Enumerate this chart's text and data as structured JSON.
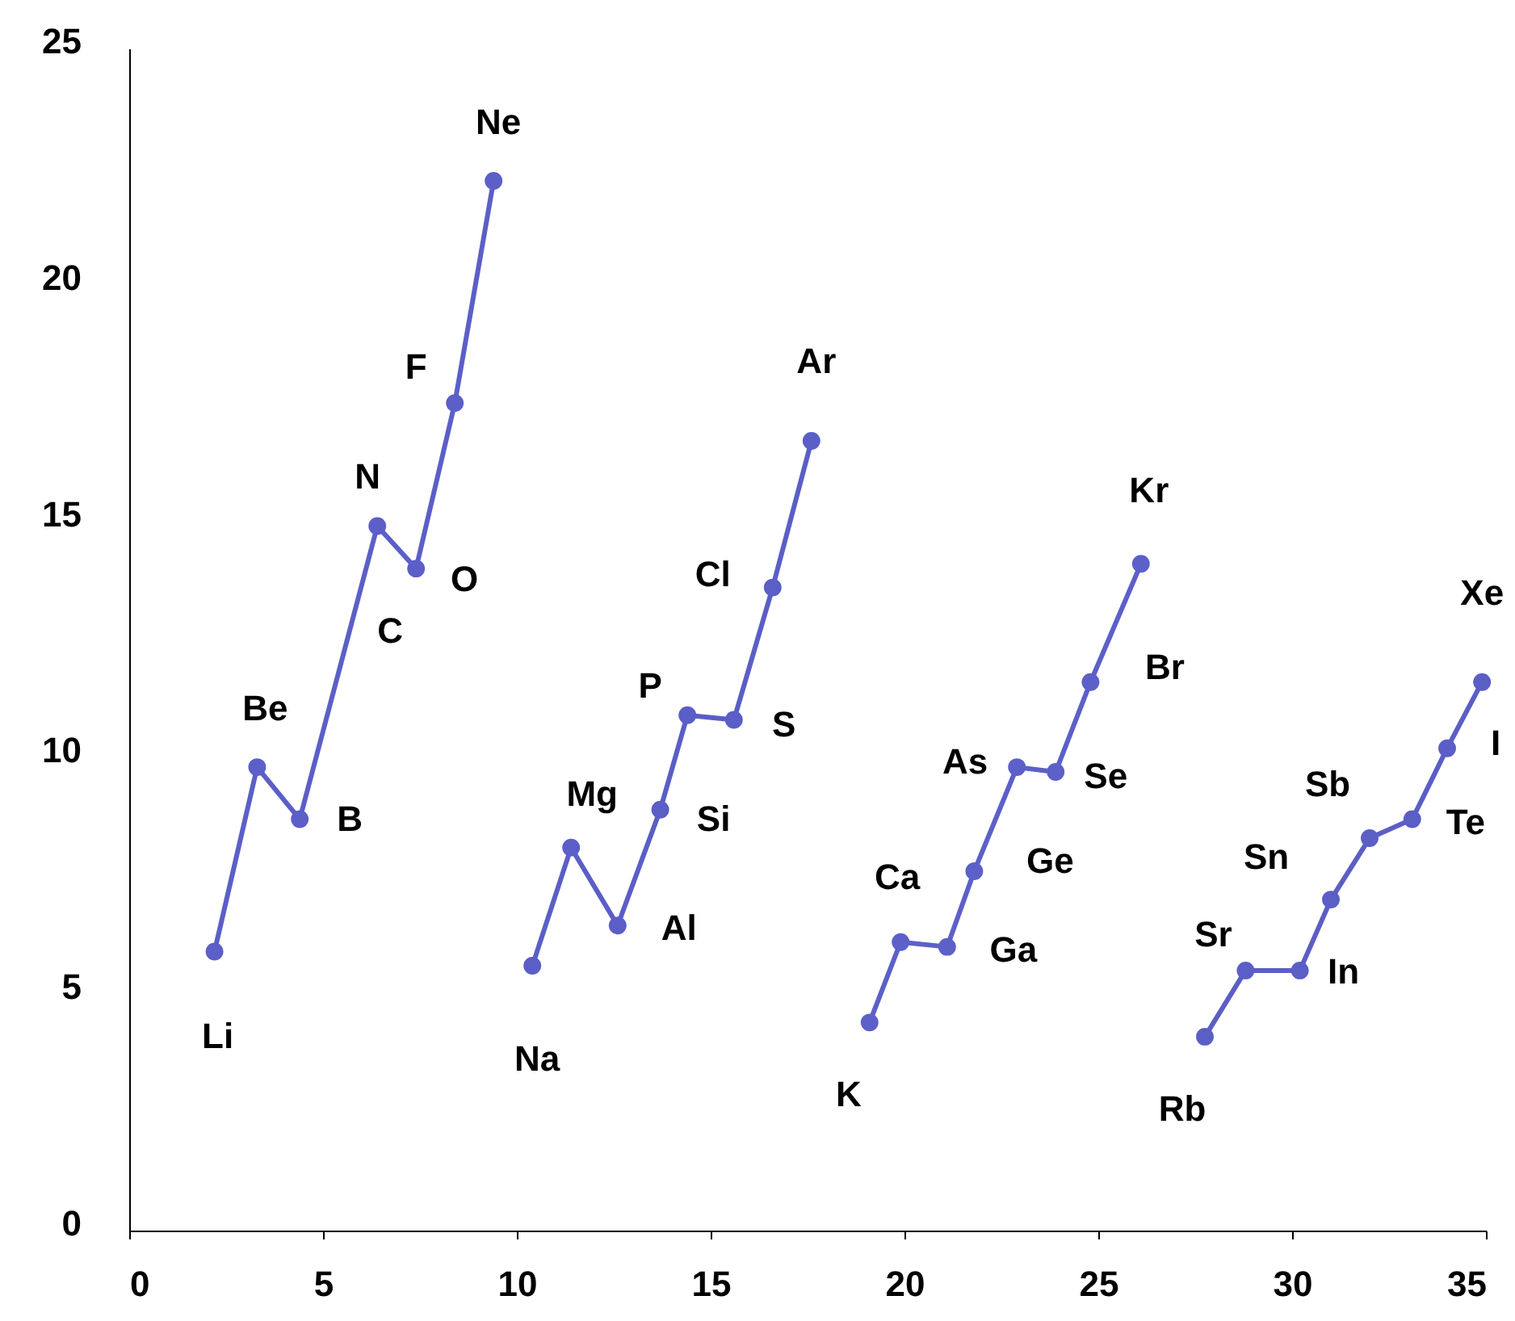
{
  "chart_data": {
    "type": "line",
    "marker": "circle",
    "line_style": "solid",
    "grid": false,
    "xlim": [
      0,
      35
    ],
    "xticks": [
      0,
      5,
      10,
      15,
      20,
      25,
      30,
      35
    ],
    "ylim": [
      0,
      25
    ],
    "yticks": [
      0,
      5,
      10,
      15,
      20,
      25
    ],
    "series": [
      {
        "color": "#5b5fc7",
        "x": [
          2.2,
          3.3,
          4.4,
          6.4,
          7.4,
          8.4,
          9.4
        ],
        "values": [
          5.9,
          9.8,
          8.7,
          14.9,
          14.0,
          17.5,
          22.2
        ]
      },
      {
        "color": "#5a5ec6",
        "x": [
          10.4,
          11.4,
          12.6,
          13.7,
          14.4,
          15.6,
          16.6,
          17.6
        ],
        "values": [
          5.6,
          8.1,
          6.45,
          8.9,
          10.9,
          10.8,
          13.6,
          16.7
        ]
      },
      {
        "color": "#5c60c8",
        "x": [
          19.1,
          19.9,
          21.1,
          21.8,
          22.9,
          23.9,
          24.8,
          26.1
        ],
        "values": [
          4.4,
          6.1,
          6.0,
          7.6,
          9.8,
          9.7,
          11.6,
          14.1
        ]
      },
      {
        "color": "#5b5ec5",
        "x": [
          27.75,
          28.8,
          30.2,
          31.0,
          32.0,
          33.1,
          34.0,
          34.9
        ],
        "values": [
          4.1,
          5.5,
          5.5,
          7.0,
          8.3,
          8.7,
          10.2,
          11.6
        ]
      }
    ],
    "annotations": [
      {
        "text": "Li",
        "x": 2.2,
        "y": 5.9
      },
      {
        "text": "Be",
        "x": 3.3,
        "y": 9.8
      },
      {
        "text": "B",
        "x": 4.4,
        "y": 8.7
      },
      {
        "text": "C",
        "x": 5.4,
        "y": 11.3
      },
      {
        "text": "N",
        "x": 6.4,
        "y": 14.9
      },
      {
        "text": "O",
        "x": 7.4,
        "y": 14.0
      },
      {
        "text": "F",
        "x": 8.4,
        "y": 17.5
      },
      {
        "text": "Ne",
        "x": 9.4,
        "y": 22.2
      },
      {
        "text": "Na",
        "x": 10.4,
        "y": 5.6
      },
      {
        "text": "Mg",
        "x": 11.4,
        "y": 8.1
      },
      {
        "text": "Al",
        "x": 12.6,
        "y": 6.45
      },
      {
        "text": "Si",
        "x": 13.7,
        "y": 8.9
      },
      {
        "text": "P",
        "x": 14.4,
        "y": 10.9
      },
      {
        "text": "S",
        "x": 15.6,
        "y": 10.8
      },
      {
        "text": "Cl",
        "x": 16.6,
        "y": 13.6
      },
      {
        "text": "Ar",
        "x": 17.6,
        "y": 16.7
      },
      {
        "text": "K",
        "x": 19.1,
        "y": 4.4
      },
      {
        "text": "Ca",
        "x": 19.9,
        "y": 6.1
      },
      {
        "text": "Ga",
        "x": 21.1,
        "y": 6.0
      },
      {
        "text": "Ge",
        "x": 21.8,
        "y": 7.6
      },
      {
        "text": "As",
        "x": 22.9,
        "y": 9.8
      },
      {
        "text": "Se",
        "x": 23.9,
        "y": 9.7
      },
      {
        "text": "Br",
        "x": 24.8,
        "y": 11.6
      },
      {
        "text": "Kr",
        "x": 26.1,
        "y": 14.1
      },
      {
        "text": "Rb",
        "x": 27.75,
        "y": 4.1
      },
      {
        "text": "Sr",
        "x": 28.8,
        "y": 5.5
      },
      {
        "text": "In",
        "x": 30.2,
        "y": 5.5
      },
      {
        "text": "Sn",
        "x": 31.0,
        "y": 7.0
      },
      {
        "text": "Sb",
        "x": 32.0,
        "y": 8.3
      },
      {
        "text": "Te",
        "x": 33.1,
        "y": 8.7
      },
      {
        "text": "I",
        "x": 34.0,
        "y": 10.2
      },
      {
        "text": "Xe",
        "x": 34.9,
        "y": 11.6
      }
    ]
  }
}
